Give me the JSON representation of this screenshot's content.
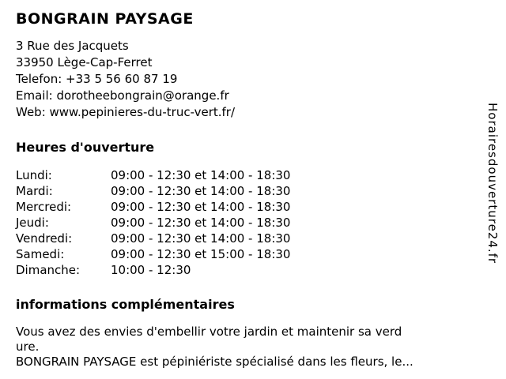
{
  "page": {
    "title": "BONGRAIN PAYSAGE"
  },
  "contact": {
    "address_line1": "3 Rue des Jacquets",
    "address_line2": "33950 Lège-Cap-Ferret",
    "phone_line": "Telefon: +33 5 56 60 87 19",
    "email_line": "Email: dorotheebongrain@orange.fr",
    "web_line": "Web: www.pepinieres-du-truc-vert.fr/"
  },
  "hours": {
    "heading": "Heures d'ouverture",
    "rows": [
      {
        "day": "Lundi:",
        "time": "09:00 - 12:30 et 14:00 - 18:30"
      },
      {
        "day": "Mardi:",
        "time": "09:00 - 12:30 et 14:00 - 18:30"
      },
      {
        "day": "Mercredi:",
        "time": "09:00 - 12:30 et 14:00 - 18:30"
      },
      {
        "day": "Jeudi:",
        "time": "09:00 - 12:30 et 14:00 - 18:30"
      },
      {
        "day": "Vendredi:",
        "time": "09:00 - 12:30 et 14:00 - 18:30"
      },
      {
        "day": "Samedi:",
        "time": "09:00 - 12:30 et 15:00 - 18:30"
      },
      {
        "day": "Dimanche:",
        "time": "10:00 - 12:30"
      }
    ]
  },
  "info": {
    "heading": "informations complémentaires",
    "lines": [
      "Vous avez des envies d'embellir votre jardin et maintenir sa verd",
      "ure.",
      "BONGRAIN PAYSAGE est pépiniériste spécialisé dans les fleurs, le..."
    ]
  },
  "watermark": {
    "text": "Horairesdouverture24.fr"
  }
}
